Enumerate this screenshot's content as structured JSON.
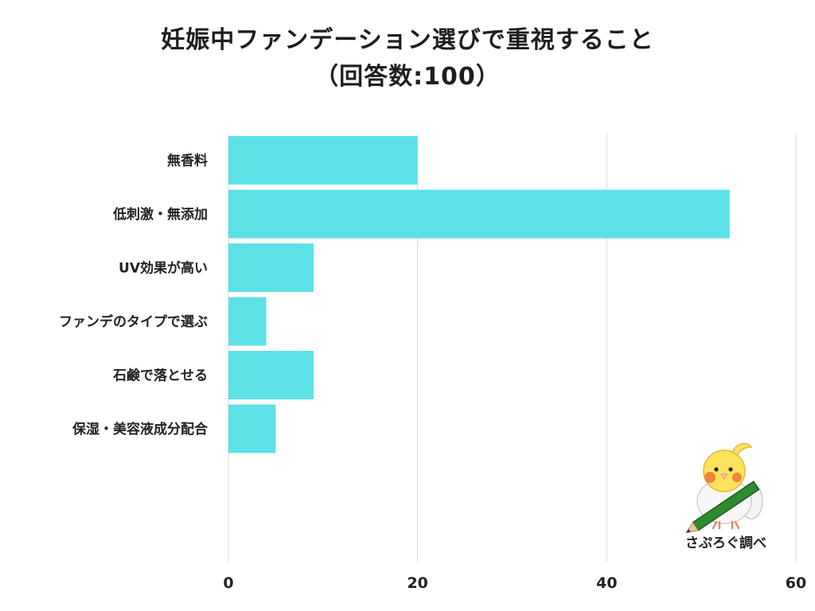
{
  "chart_data": {
    "type": "bar",
    "orientation": "horizontal",
    "title": "妊娠中ファンデーション選びで重視すること",
    "subtitle": "（回答数:100）",
    "categories": [
      "無香料",
      "低刺激・無添加",
      "UV効果が高い",
      "ファンデのタイプで選ぶ",
      "石鹸で落とせる",
      "保湿・美容液成分配合"
    ],
    "values": [
      20,
      53,
      9,
      4,
      9,
      5
    ],
    "xlim": [
      0,
      60
    ],
    "xticks": [
      0,
      20,
      40,
      60
    ],
    "grid": true,
    "bar_color": "#5ce1e6",
    "grid_color": "#d9d9d9"
  },
  "watermark": {
    "caption": "さぷろぐ調べ",
    "icon": "bird-with-pencil-icon"
  }
}
